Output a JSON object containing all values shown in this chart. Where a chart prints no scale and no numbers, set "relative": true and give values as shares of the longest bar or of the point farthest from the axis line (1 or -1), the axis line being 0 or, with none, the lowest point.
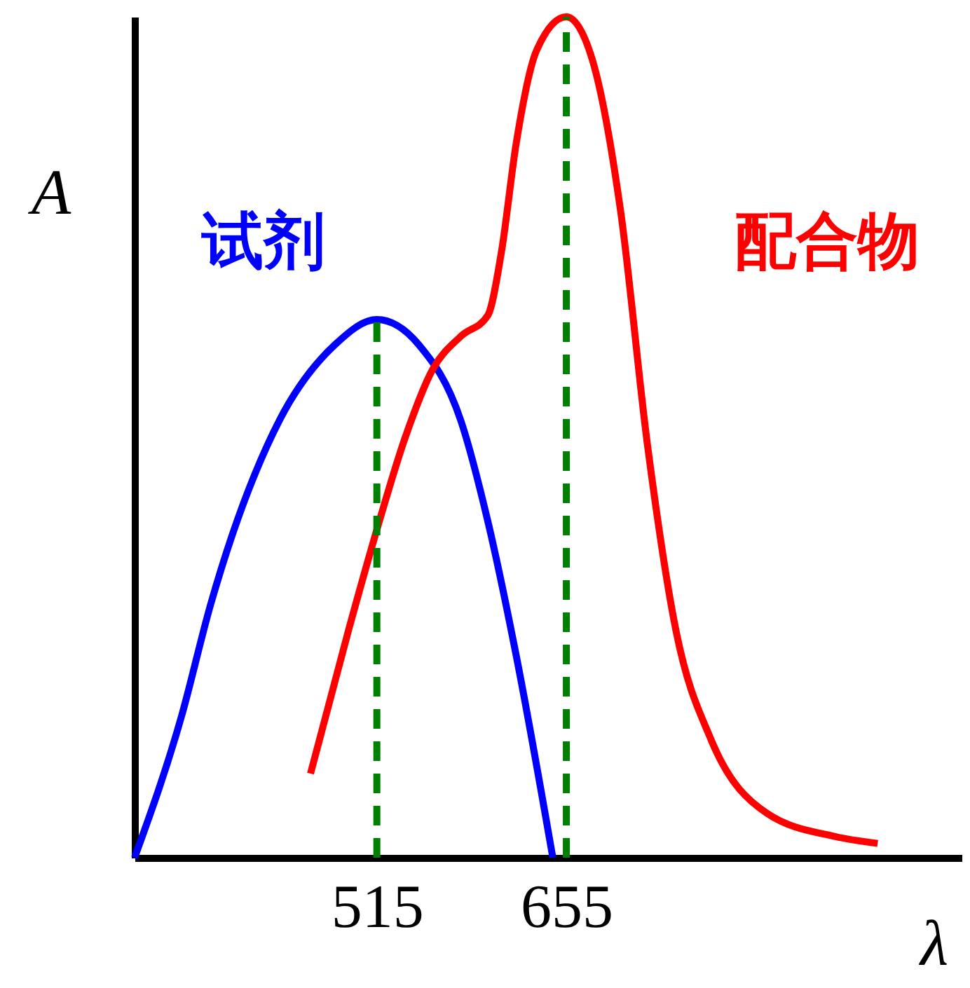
{
  "chart_data": {
    "type": "line",
    "relative": true,
    "xlabel": "λ",
    "ylabel": "A",
    "xlim": [
      336,
      947
    ],
    "xticks": [
      515,
      655
    ],
    "tick_labels": "x",
    "grid": false,
    "series": [
      {
        "name": "试剂",
        "color": "#0000ff",
        "x": [
          336,
          371,
          392,
          443,
          484,
          515,
          546,
          577,
          597,
          618,
          645
        ],
        "values": [
          0,
          0.17,
          0.3,
          0.52,
          0.61,
          0.64,
          0.61,
          0.52,
          0.4,
          0.24,
          0
        ]
      },
      {
        "name": "配合物",
        "color": "#ff0000",
        "x": [
          466,
          494,
          515,
          536,
          556,
          577,
          597,
          607,
          618,
          633,
          655,
          674,
          695,
          715,
          736,
          762,
          803,
          854,
          885
        ],
        "values": [
          0.1,
          0.27,
          0.39,
          0.5,
          0.58,
          0.62,
          0.645,
          0.72,
          0.85,
          0.96,
          1.0,
          0.95,
          0.77,
          0.49,
          0.27,
          0.14,
          0.053,
          0.025,
          0.017
        ]
      },
      {
        "color": "#008000",
        "line_style": "dashed",
        "x": [
          515,
          515
        ],
        "values": [
          0,
          0.64
        ]
      },
      {
        "color": "#008000",
        "line_style": "dashed",
        "x": [
          655,
          655
        ],
        "values": [
          0,
          1.0
        ]
      }
    ]
  }
}
